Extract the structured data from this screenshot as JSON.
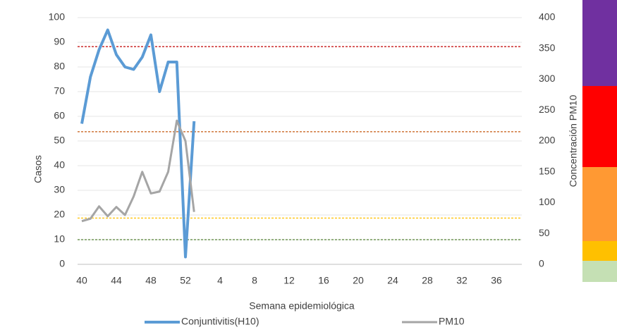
{
  "chart_data": {
    "type": "line",
    "x_label": "Semana epidemiológica",
    "y_label": "Casos",
    "y2_label": "Concentración PM10",
    "categories": [
      40,
      null,
      null,
      null,
      44,
      null,
      null,
      null,
      48,
      null,
      null,
      null,
      52,
      null,
      null,
      null,
      4,
      null,
      null,
      null,
      8,
      null,
      null,
      null,
      12,
      null,
      null,
      null,
      16,
      null,
      null,
      null,
      20,
      null,
      null,
      null,
      24,
      null,
      null,
      null,
      28,
      null,
      null,
      null,
      32,
      null,
      null,
      null,
      36,
      null,
      null,
      null
    ],
    "series": [
      {
        "name": "Conjuntivitis(H10)",
        "color": "#5b9bd5",
        "values": [
          57,
          76,
          87,
          95,
          85,
          80,
          79,
          84,
          93,
          70,
          82,
          82,
          3,
          58,
          null,
          null,
          null,
          null,
          null,
          null,
          null,
          null,
          null,
          null,
          null,
          null,
          null,
          null,
          null,
          null,
          null,
          null,
          null,
          null,
          null,
          null,
          null,
          null,
          null,
          null,
          null,
          null,
          null,
          null,
          null,
          null,
          null,
          null,
          null,
          null,
          null,
          null
        ]
      },
      {
        "name": "PM10",
        "color": "#a5a5a5",
        "axis": "y2",
        "values": [
          70,
          74,
          94,
          78,
          93,
          80,
          110,
          150,
          115,
          118,
          150,
          233,
          200,
          85,
          null,
          null,
          null,
          null,
          null,
          null,
          null,
          null,
          null,
          null,
          null,
          null,
          null,
          null,
          null,
          null,
          null,
          null,
          null,
          null,
          null,
          null,
          null,
          null,
          null,
          null,
          null,
          null,
          null,
          null,
          null,
          null,
          null,
          null,
          null,
          null,
          null,
          null
        ]
      }
    ],
    "reference_lines": [
      {
        "value": 353,
        "color": "#c00000",
        "axis": "y2"
      },
      {
        "value": 215,
        "color": "#c55a11",
        "axis": "y2"
      },
      {
        "value": 75,
        "color": "#ffc000",
        "axis": "y2"
      },
      {
        "value": 40,
        "color": "#548235",
        "axis": "y2"
      }
    ],
    "ylim": [
      0,
      100
    ],
    "yticks": [
      0,
      10,
      20,
      30,
      40,
      50,
      60,
      70,
      80,
      90,
      100
    ],
    "y2lim": [
      0,
      400
    ],
    "y2ticks": [
      0,
      50,
      100,
      150,
      200,
      250,
      300,
      350,
      400
    ],
    "grid": true
  }
}
